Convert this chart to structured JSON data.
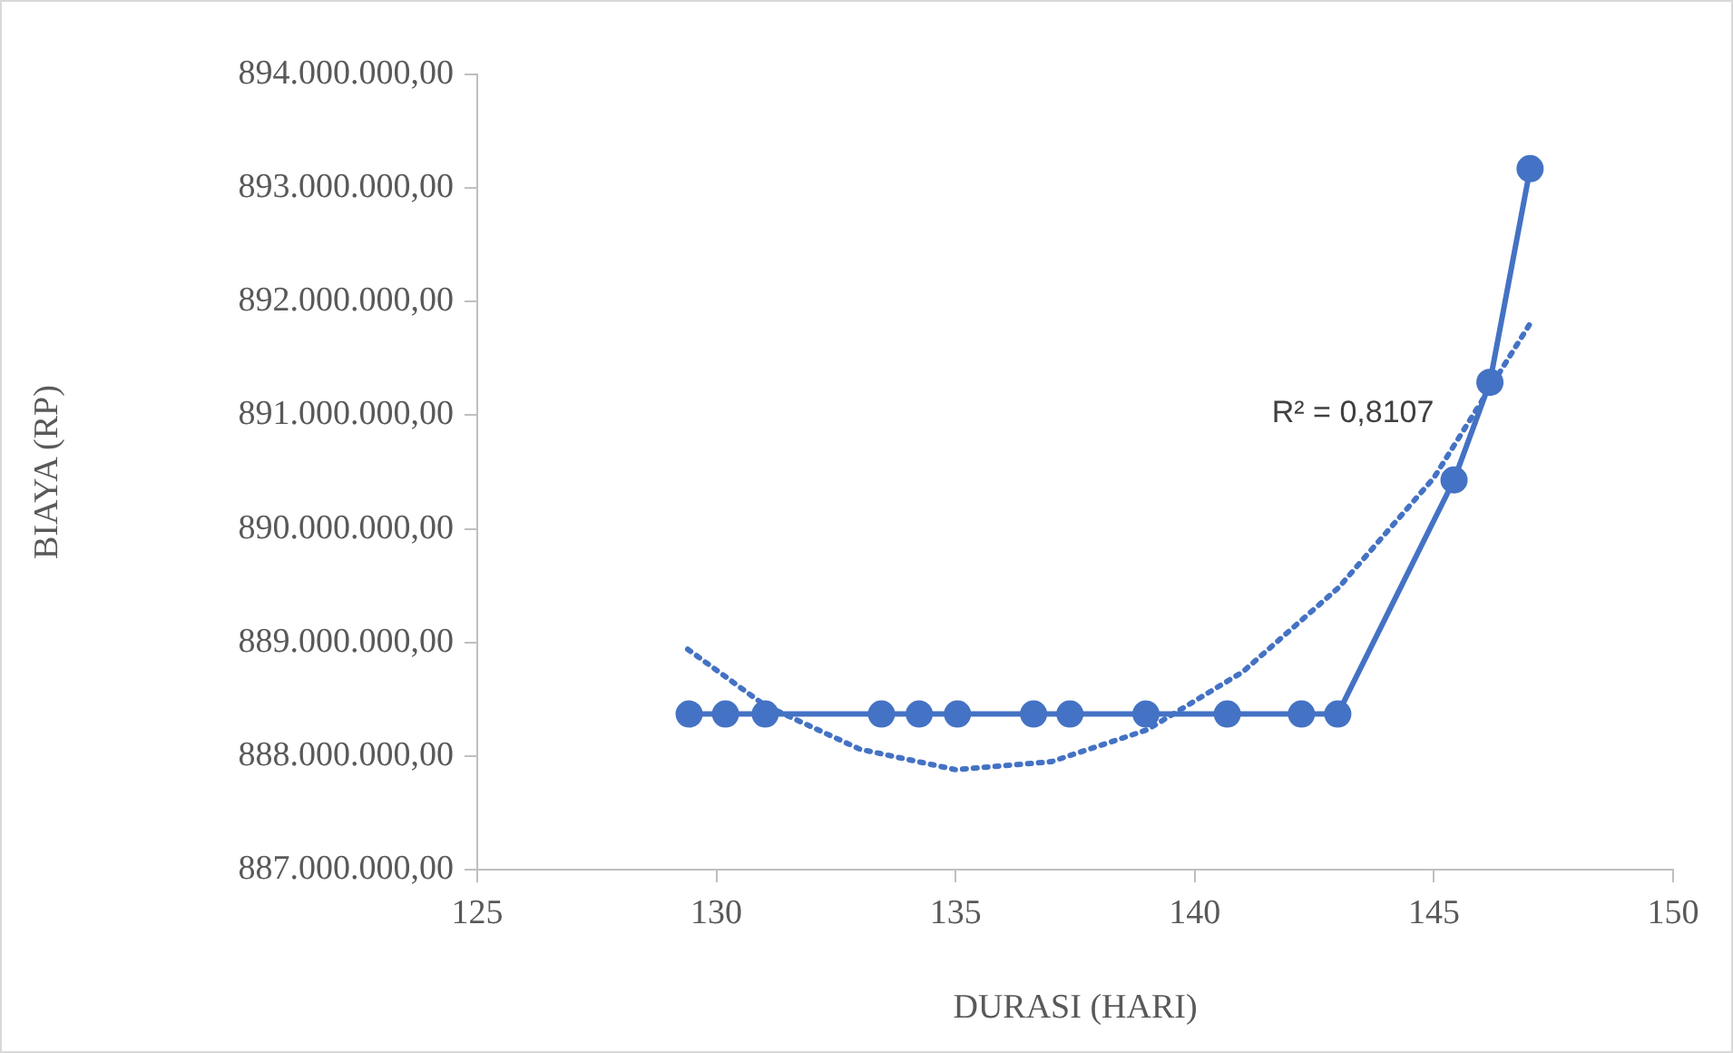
{
  "chart_data": {
    "type": "line",
    "xlabel": "DURASI (HARI)",
    "ylabel": "BIAYA (RP)",
    "series": [
      {
        "color": "#4472c4",
        "marker": "circle",
        "line_style": "solid",
        "x": [
          129.43,
          130.19,
          131.02,
          133.45,
          134.24,
          135.04,
          136.63,
          137.39,
          138.98,
          140.68,
          142.23,
          142.99,
          145.42,
          146.17,
          147.01
        ],
        "values": [
          888370000,
          888370000,
          888370000,
          888370000,
          888370000,
          888370000,
          888370000,
          888370000,
          888370000,
          888370000,
          888370000,
          888370000,
          890430000,
          891290000,
          893170000
        ]
      },
      {
        "color": "#4472c4",
        "marker": "none",
        "line_style": "dotted",
        "x": [
          129.4,
          131,
          133,
          135,
          137,
          139,
          141,
          143,
          145,
          147
        ],
        "values": [
          888940000,
          888450000,
          888060000,
          887880000,
          887950000,
          888230000,
          888740000,
          889480000,
          890450000,
          891800000
        ]
      }
    ],
    "xlim": [
      125,
      150
    ],
    "xticks": [
      125,
      130,
      135,
      140,
      145,
      150
    ],
    "ylim": [
      887000000,
      894000000
    ],
    "yticks": [
      {
        "value": 887000000,
        "label": "887.000.000,00"
      },
      {
        "value": 888000000,
        "label": "888.000.000,00"
      },
      {
        "value": 889000000,
        "label": "889.000.000,00"
      },
      {
        "value": 890000000,
        "label": "890.000.000,00"
      },
      {
        "value": 891000000,
        "label": "891.000.000,00"
      },
      {
        "value": 892000000,
        "label": "892.000.000,00"
      },
      {
        "value": 893000000,
        "label": "893.000.000,00"
      },
      {
        "value": 894000000,
        "label": "894.000.000,00"
      }
    ],
    "annotations": [
      "R² = 0,8107"
    ],
    "grid": false,
    "legend": false
  }
}
